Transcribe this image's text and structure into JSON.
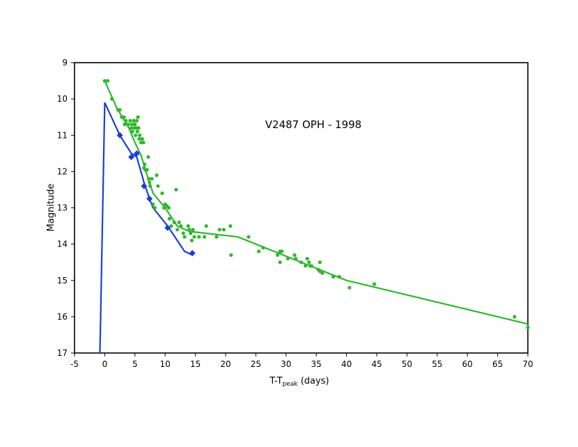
{
  "chart_data": {
    "type": "scatter",
    "title": "V2487 OPH - 1998",
    "xlabel": {
      "main": "T-T",
      "sub": "peak",
      "tail": " (days)"
    },
    "ylabel": "Magnitude",
    "xlim": [
      -5,
      70
    ],
    "ylim": [
      9,
      17
    ],
    "y_inverted": true,
    "grid": false,
    "x_ticks": [
      "-5",
      "0",
      "5",
      "10",
      "15",
      "20",
      "25",
      "30",
      "35",
      "40",
      "45",
      "50",
      "55",
      "60",
      "65",
      "70"
    ],
    "y_ticks": [
      "9",
      "10",
      "11",
      "12",
      "13",
      "14",
      "15",
      "16",
      "17"
    ],
    "colors": {
      "green": "#2db82d",
      "blue": "#1a3fd6"
    },
    "series": [
      {
        "color": "#2db82d",
        "marker": "circle",
        "points": [
          [
            0.0,
            9.5
          ],
          [
            0.5,
            9.5
          ],
          [
            1.2,
            10.0
          ],
          [
            2.2,
            10.3
          ],
          [
            2.5,
            10.3
          ],
          [
            2.8,
            10.5
          ],
          [
            3.2,
            10.5
          ],
          [
            3.5,
            10.6
          ],
          [
            3.3,
            10.7
          ],
          [
            3.9,
            10.7
          ],
          [
            4.2,
            10.6
          ],
          [
            4.4,
            10.8
          ],
          [
            4.5,
            10.7
          ],
          [
            4.6,
            10.9
          ],
          [
            4.8,
            10.6
          ],
          [
            4.9,
            10.8
          ],
          [
            5.0,
            10.7
          ],
          [
            5.1,
            11.0
          ],
          [
            5.2,
            10.8
          ],
          [
            5.3,
            10.6
          ],
          [
            5.4,
            10.9
          ],
          [
            5.5,
            10.5
          ],
          [
            5.6,
            10.8
          ],
          [
            5.7,
            11.1
          ],
          [
            5.8,
            11.0
          ],
          [
            6.0,
            11.2
          ],
          [
            6.2,
            11.1
          ],
          [
            6.4,
            11.2
          ],
          [
            6.5,
            11.9
          ],
          [
            6.6,
            11.8
          ],
          [
            6.7,
            11.95
          ],
          [
            7.0,
            11.95
          ],
          [
            7.2,
            11.6
          ],
          [
            7.3,
            12.2
          ],
          [
            7.4,
            12.3
          ],
          [
            7.5,
            12.4
          ],
          [
            7.8,
            12.2
          ],
          [
            8.0,
            12.9
          ],
          [
            8.3,
            13.0
          ],
          [
            8.6,
            12.1
          ],
          [
            8.8,
            12.4
          ],
          [
            9.5,
            12.6
          ],
          [
            9.8,
            13.0
          ],
          [
            10.0,
            12.9
          ],
          [
            10.3,
            12.95
          ],
          [
            10.6,
            13.0
          ],
          [
            10.7,
            13.3
          ],
          [
            11.0,
            13.5
          ],
          [
            11.5,
            13.4
          ],
          [
            11.8,
            12.5
          ],
          [
            12.0,
            13.6
          ],
          [
            12.3,
            13.4
          ],
          [
            12.6,
            13.5
          ],
          [
            13.0,
            13.7
          ],
          [
            13.2,
            13.8
          ],
          [
            13.8,
            13.5
          ],
          [
            14.0,
            13.6
          ],
          [
            14.2,
            13.7
          ],
          [
            14.4,
            13.9
          ],
          [
            14.6,
            13.6
          ],
          [
            14.8,
            13.8
          ],
          [
            15.6,
            13.8
          ],
          [
            16.5,
            13.8
          ],
          [
            16.8,
            13.5
          ],
          [
            18.5,
            13.8
          ],
          [
            19.0,
            13.6
          ],
          [
            19.7,
            13.6
          ],
          [
            20.8,
            13.5
          ],
          [
            20.9,
            14.3
          ],
          [
            23.8,
            13.8
          ],
          [
            25.5,
            14.2
          ],
          [
            26.2,
            14.1
          ],
          [
            28.6,
            14.3
          ],
          [
            29.0,
            14.2
          ],
          [
            29.3,
            14.2
          ],
          [
            29.0,
            14.5
          ],
          [
            30.3,
            14.4
          ],
          [
            31.4,
            14.3
          ],
          [
            31.6,
            14.4
          ],
          [
            32.5,
            14.5
          ],
          [
            33.2,
            14.6
          ],
          [
            33.5,
            14.4
          ],
          [
            33.8,
            14.5
          ],
          [
            34.0,
            14.6
          ],
          [
            34.2,
            14.6
          ],
          [
            35.6,
            14.5
          ],
          [
            35.3,
            14.7
          ],
          [
            35.6,
            14.75
          ],
          [
            36.0,
            14.8
          ],
          [
            37.8,
            14.9
          ],
          [
            38.8,
            14.9
          ],
          [
            40.5,
            15.2
          ],
          [
            44.6,
            15.1
          ],
          [
            67.8,
            16.0
          ],
          [
            70.0,
            16.3
          ]
        ]
      },
      {
        "color": "#1a3fd6",
        "marker": "diamond",
        "points": [
          [
            2.5,
            11.0
          ],
          [
            4.4,
            11.6
          ],
          [
            5.3,
            11.5
          ],
          [
            6.5,
            12.4
          ],
          [
            7.4,
            12.75
          ],
          [
            10.4,
            13.55
          ],
          [
            14.5,
            14.25
          ]
        ]
      }
    ],
    "lines": [
      {
        "color": "#2db82d",
        "points": [
          [
            0,
            9.5
          ],
          [
            2,
            10.25
          ],
          [
            4,
            10.8
          ],
          [
            5,
            11.2
          ],
          [
            6,
            11.55
          ],
          [
            7,
            12.1
          ],
          [
            8,
            12.6
          ],
          [
            9,
            12.8
          ],
          [
            10,
            13.0
          ],
          [
            12,
            13.5
          ],
          [
            14,
            13.65
          ],
          [
            22,
            13.8
          ],
          [
            40,
            15.0
          ],
          [
            70,
            16.2
          ]
        ]
      },
      {
        "color": "#1a3fd6",
        "points": [
          [
            -0.8,
            17.0
          ],
          [
            0,
            10.1
          ],
          [
            2.5,
            11.0
          ],
          [
            4.4,
            11.5
          ],
          [
            5.3,
            11.6
          ],
          [
            6.5,
            12.3
          ],
          [
            7.4,
            12.75
          ],
          [
            8,
            13.0
          ],
          [
            10.4,
            13.5
          ],
          [
            13.2,
            14.2
          ],
          [
            14.5,
            14.3
          ]
        ]
      }
    ]
  }
}
